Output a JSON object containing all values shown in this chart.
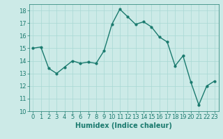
{
  "x": [
    0,
    1,
    2,
    3,
    4,
    5,
    6,
    7,
    8,
    9,
    10,
    11,
    12,
    13,
    14,
    15,
    16,
    17,
    18,
    19,
    20,
    21,
    22,
    23
  ],
  "y": [
    15.0,
    15.1,
    13.4,
    13.0,
    13.5,
    14.0,
    13.8,
    13.9,
    13.8,
    14.8,
    16.9,
    18.1,
    17.5,
    16.9,
    17.1,
    16.7,
    15.9,
    15.5,
    13.6,
    14.4,
    12.3,
    10.5,
    12.0,
    12.4
  ],
  "line_color": "#1a7a6e",
  "marker": "o",
  "marker_size": 2,
  "linewidth": 1.0,
  "bg_color": "#cceae7",
  "grid_color": "#a8d8d4",
  "xlabel": "Humidex (Indice chaleur)",
  "xlabel_fontsize": 7,
  "ylim": [
    10,
    18.5
  ],
  "xlim": [
    -0.5,
    23.5
  ],
  "yticks": [
    10,
    11,
    12,
    13,
    14,
    15,
    16,
    17,
    18
  ],
  "xticks": [
    0,
    1,
    2,
    3,
    4,
    5,
    6,
    7,
    8,
    9,
    10,
    11,
    12,
    13,
    14,
    15,
    16,
    17,
    18,
    19,
    20,
    21,
    22,
    23
  ],
  "tick_fontsize": 6,
  "tick_color": "#1a7a6e",
  "label_color": "#1a7a6e"
}
